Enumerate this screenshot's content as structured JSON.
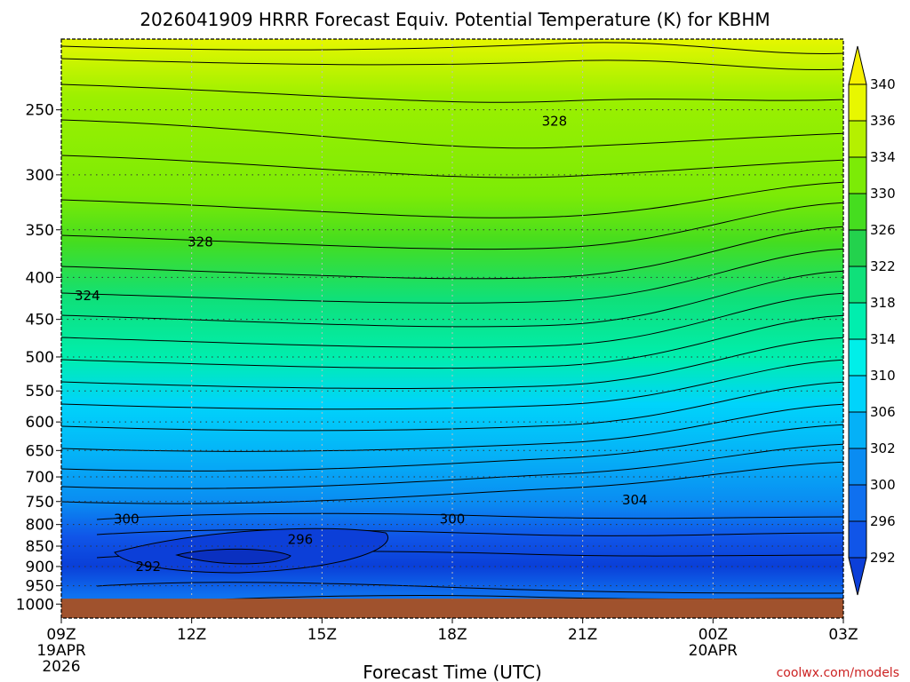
{
  "chart_data": {
    "type": "heatmap",
    "title": "2026041909 HRRR Forecast Equiv. Potential Temperature (K) for KBHM",
    "xlabel": "Forecast Time (UTC)",
    "ylabel": "",
    "y_scale": "log",
    "y_inverted": true,
    "ylim": [
      1000,
      200
    ],
    "xlim": [
      0,
      18
    ],
    "grid": true,
    "x_ticks": [
      {
        "x": 0,
        "lines": [
          "09Z",
          "19APR",
          "2026"
        ]
      },
      {
        "x": 3,
        "lines": [
          "12Z"
        ]
      },
      {
        "x": 6,
        "lines": [
          "15Z"
        ]
      },
      {
        "x": 9,
        "lines": [
          "18Z"
        ]
      },
      {
        "x": 12,
        "lines": [
          "21Z"
        ]
      },
      {
        "x": 15,
        "lines": [
          "00Z",
          "20APR"
        ]
      },
      {
        "x": 18,
        "lines": [
          "03Z"
        ]
      }
    ],
    "y_ticks": [
      250,
      300,
      350,
      400,
      450,
      500,
      550,
      600,
      650,
      700,
      750,
      800,
      850,
      900,
      950,
      1000
    ],
    "colorbar": {
      "levels": [
        292,
        296,
        300,
        302,
        306,
        310,
        314,
        318,
        322,
        326,
        330,
        334,
        336,
        340
      ],
      "colors": [
        "#0c3fd8",
        "#1055e8",
        "#0f70ef",
        "#0a8cf2",
        "#05b1f7",
        "#00d4fb",
        "#00efe9",
        "#00eeae",
        "#0fe07a",
        "#23d24d",
        "#45dd1f",
        "#7ceb06",
        "#b5f000",
        "#e8f700",
        "#f6f000"
      ],
      "extend": "both"
    },
    "contour_labels": [
      {
        "x": 11.35,
        "p": 258,
        "text": "328"
      },
      {
        "x": 3.2,
        "p": 362,
        "text": "328"
      },
      {
        "x": 0.6,
        "p": 421,
        "text": "324"
      },
      {
        "x": 13.2,
        "p": 747,
        "text": "304"
      },
      {
        "x": 1.5,
        "p": 788,
        "text": "300"
      },
      {
        "x": 9.0,
        "p": 788,
        "text": "300"
      },
      {
        "x": 5.5,
        "p": 834,
        "text": "296"
      },
      {
        "x": 2.0,
        "p": 900,
        "text": "292"
      }
    ],
    "surface_p": 985,
    "credit": "coolwx.com/models"
  }
}
